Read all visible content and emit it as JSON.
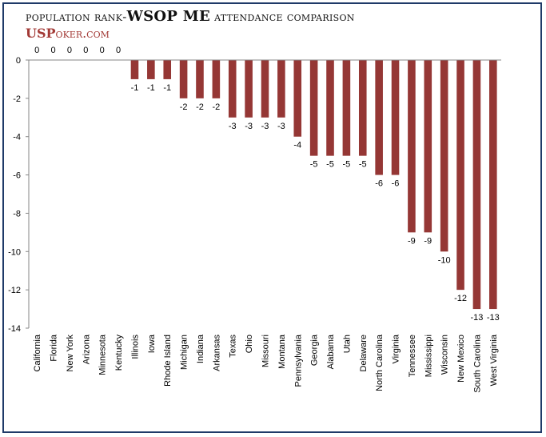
{
  "title": {
    "prefix": "population rank-",
    "emphasis": "WSOP ME",
    "suffix": " attendance comparison"
  },
  "logo": {
    "brand": "USP",
    "rest": "oker.com"
  },
  "chart_data": {
    "type": "bar",
    "categories": [
      "California",
      "Florida",
      "New York",
      "Arizona",
      "Minnesota",
      "Kentucky",
      "Illinois",
      "Iowa",
      "Rhode Island",
      "Michigan",
      "Indiana",
      "Arkansas",
      "Texas",
      "Ohio",
      "Missouri",
      "Montana",
      "Pennsylvania",
      "Georgia",
      "Alabama",
      "Utah",
      "Delaware",
      "North Carolina",
      "Virginia",
      "Tennessee",
      "Mississippi",
      "Wisconsin",
      "New Mexico",
      "South Carolina",
      "West Virginia"
    ],
    "values": [
      0,
      0,
      0,
      0,
      0,
      0,
      -1,
      -1,
      -1,
      -2,
      -2,
      -2,
      -3,
      -3,
      -3,
      -3,
      -4,
      -5,
      -5,
      -5,
      -5,
      -6,
      -6,
      -9,
      -9,
      -10,
      -12,
      -13,
      -13
    ],
    "ylim": [
      -14,
      0
    ],
    "yticks": [
      0,
      -2,
      -4,
      -6,
      -8,
      -10,
      -12,
      -14
    ],
    "bar_color": "#953735",
    "axis_color": "#868686",
    "grid": false,
    "legend": "none",
    "xlabel": "",
    "ylabel": ""
  }
}
